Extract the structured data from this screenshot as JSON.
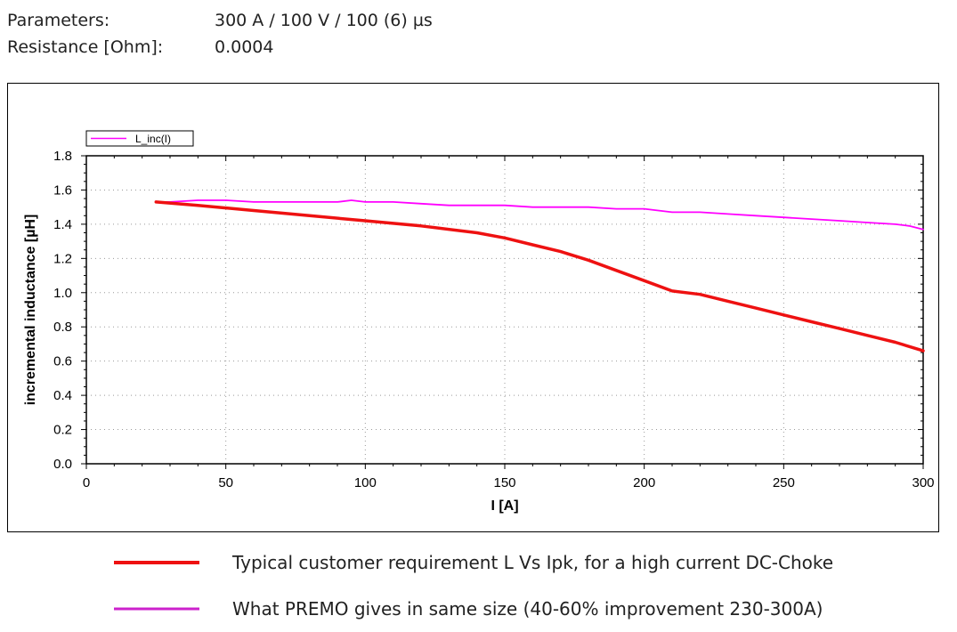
{
  "header": {
    "params_label": "Parameters:",
    "params_value": "300 A / 100 V / 100 (6) µs",
    "resistance_label": "Resistance [Ohm]:",
    "resistance_value": "0.0004"
  },
  "chart_data": {
    "type": "line",
    "xlabel": "I [A]",
    "ylabel": "incremental inductance [µH]",
    "xlim": [
      0,
      300
    ],
    "ylim": [
      0,
      1.8
    ],
    "xticks": [
      "0",
      "50",
      "100",
      "150",
      "200",
      "250",
      "300"
    ],
    "yticks": [
      "0.0",
      "0.2",
      "0.4",
      "0.6",
      "0.8",
      "1.0",
      "1.2",
      "1.4",
      "1.6",
      "1.8"
    ],
    "grid": true,
    "legend_position": "top-left",
    "series": [
      {
        "name": "L_inc(I)",
        "color": "#ff00ff",
        "x": [
          25,
          30,
          40,
          50,
          60,
          70,
          80,
          90,
          95,
          100,
          110,
          120,
          130,
          140,
          150,
          160,
          170,
          180,
          190,
          200,
          210,
          220,
          230,
          240,
          250,
          260,
          270,
          280,
          290,
          295,
          300
        ],
        "y": [
          1.53,
          1.53,
          1.54,
          1.54,
          1.53,
          1.53,
          1.53,
          1.53,
          1.54,
          1.53,
          1.53,
          1.52,
          1.51,
          1.51,
          1.51,
          1.5,
          1.5,
          1.5,
          1.49,
          1.49,
          1.47,
          1.47,
          1.46,
          1.45,
          1.44,
          1.43,
          1.42,
          1.41,
          1.4,
          1.39,
          1.37
        ]
      },
      {
        "name": "",
        "color": "#ee1111",
        "x": [
          25,
          40,
          60,
          80,
          100,
          120,
          140,
          150,
          160,
          170,
          180,
          190,
          200,
          210,
          220,
          230,
          240,
          250,
          260,
          270,
          280,
          290,
          300
        ],
        "y": [
          1.53,
          1.51,
          1.48,
          1.45,
          1.42,
          1.39,
          1.35,
          1.32,
          1.28,
          1.24,
          1.19,
          1.13,
          1.07,
          1.01,
          0.99,
          0.95,
          0.91,
          0.87,
          0.83,
          0.79,
          0.75,
          0.71,
          0.66
        ]
      }
    ]
  },
  "bottom_legend": [
    {
      "color": "#ee1111",
      "text": "Typical customer requirement L Vs Ipk, for a high current DC-Choke"
    },
    {
      "color": "#cc22cc",
      "text": "What PREMO gives in same size (40-60% improvement 230-300A)"
    }
  ]
}
